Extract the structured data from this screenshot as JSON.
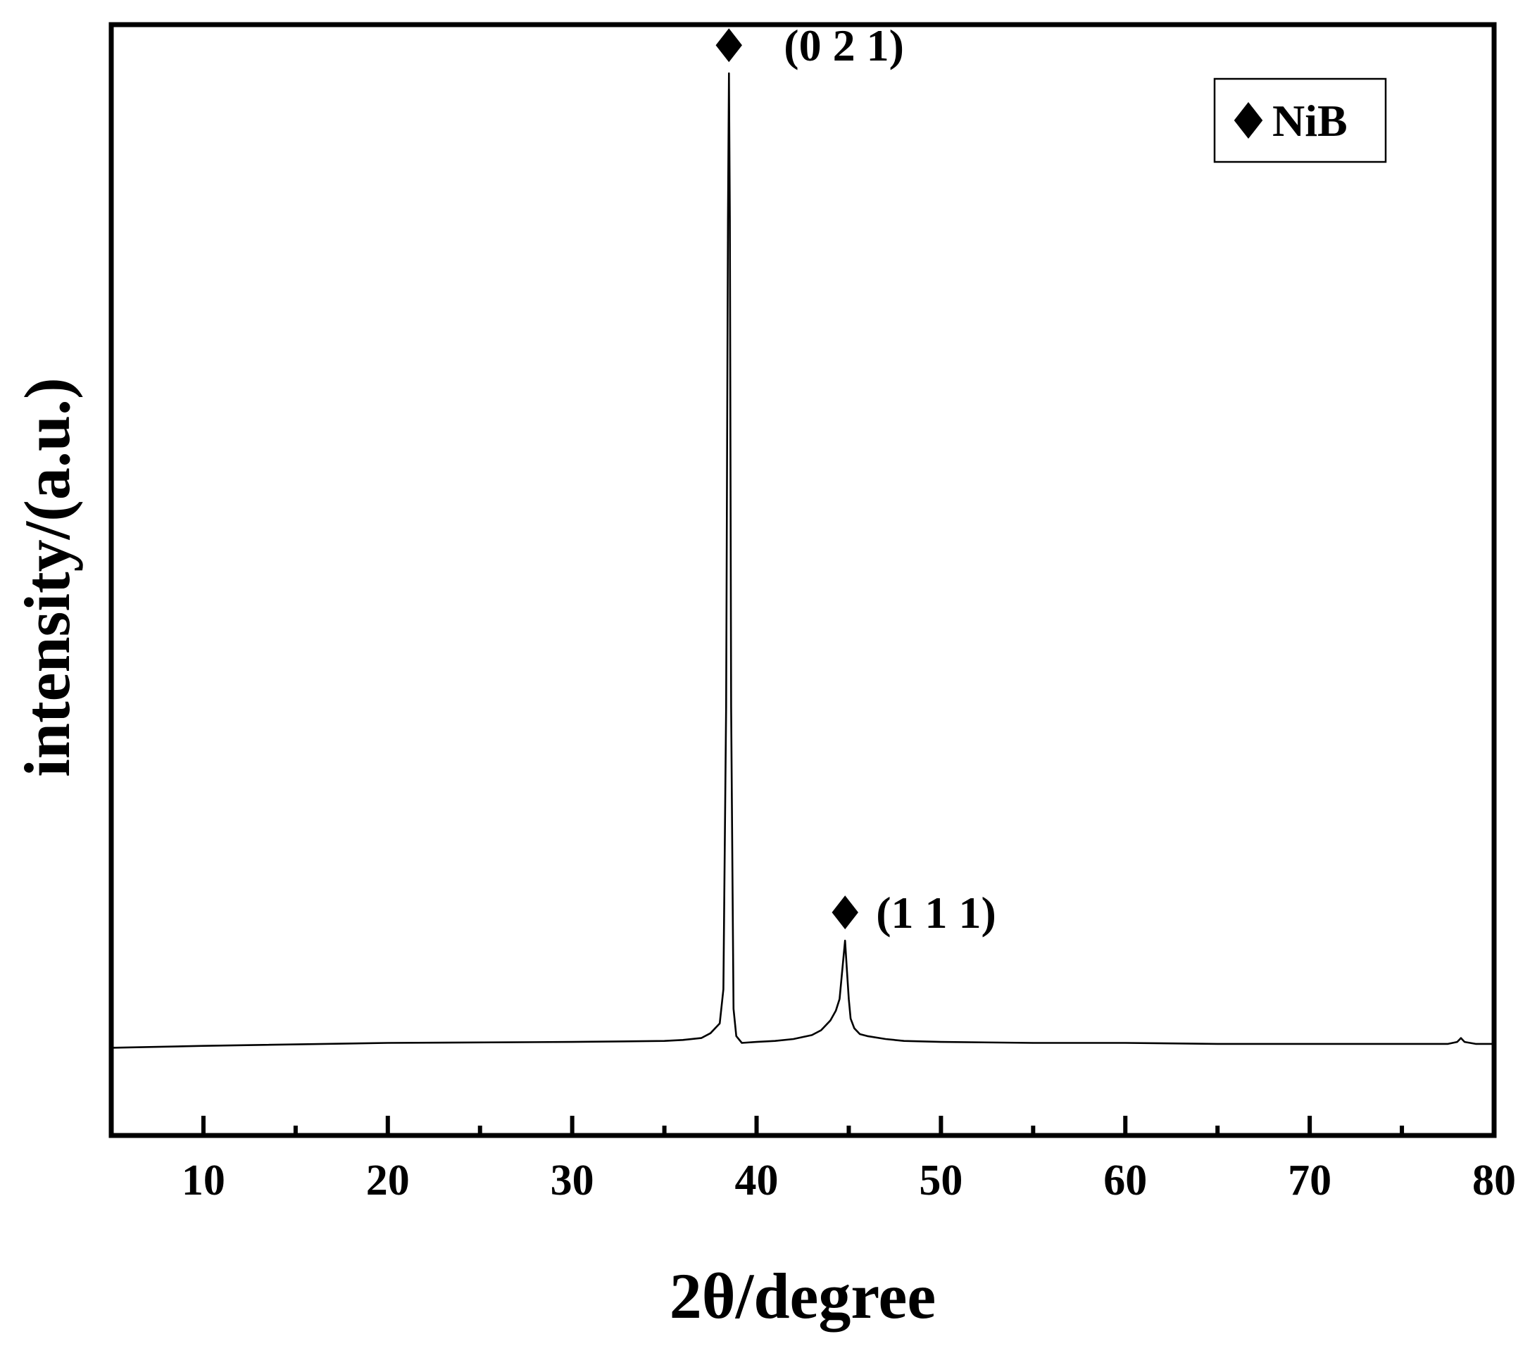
{
  "chart_data": {
    "type": "line",
    "title": "",
    "xlabel": "2θ/degree",
    "ylabel": "intensity/(a.u.)",
    "xlim": [
      5,
      80
    ],
    "ylim": [
      -0.09,
      1.05
    ],
    "x_ticks_major": [
      10,
      20,
      30,
      40,
      50,
      60,
      70,
      80
    ],
    "x_tick_labels": [
      "10",
      "20",
      "30",
      "40",
      "50",
      "60",
      "70",
      "80"
    ],
    "x_ticks_minor": [
      15,
      25,
      35,
      45,
      55,
      65,
      75
    ],
    "y_ticks": [],
    "grid": false,
    "legend": {
      "position": "top-right",
      "marker": "diamond",
      "label": "NiB"
    },
    "series": [
      {
        "name": "NiB",
        "x": [
          5,
          10,
          20,
          30,
          35,
          36,
          37,
          37.5,
          38,
          38.2,
          38.35,
          38.45,
          38.5,
          38.55,
          38.62,
          38.75,
          38.9,
          39.2,
          40,
          41,
          42,
          43,
          43.5,
          44,
          44.3,
          44.5,
          44.6,
          44.7,
          44.8,
          44.9,
          45.0,
          45.1,
          45.3,
          45.6,
          46,
          47,
          48,
          50,
          55,
          60,
          65,
          70,
          75,
          77.5,
          78,
          78.2,
          78.4,
          79,
          80
        ],
        "y": [
          0.0,
          0.002,
          0.005,
          0.006,
          0.007,
          0.008,
          0.01,
          0.015,
          0.025,
          0.06,
          0.35,
          0.85,
          1.0,
          0.85,
          0.35,
          0.04,
          0.012,
          0.005,
          0.006,
          0.007,
          0.009,
          0.013,
          0.018,
          0.028,
          0.038,
          0.05,
          0.07,
          0.09,
          0.11,
          0.08,
          0.05,
          0.03,
          0.02,
          0.014,
          0.012,
          0.009,
          0.007,
          0.006,
          0.005,
          0.005,
          0.004,
          0.004,
          0.004,
          0.004,
          0.006,
          0.01,
          0.006,
          0.004,
          0.004
        ]
      }
    ],
    "annotations": [
      {
        "text": "(0 2 1)",
        "x": 38.5,
        "y": 1.0,
        "marker": "diamond"
      },
      {
        "text": "(1 1 1)",
        "x": 44.8,
        "y": 0.11,
        "marker": "diamond"
      }
    ]
  }
}
